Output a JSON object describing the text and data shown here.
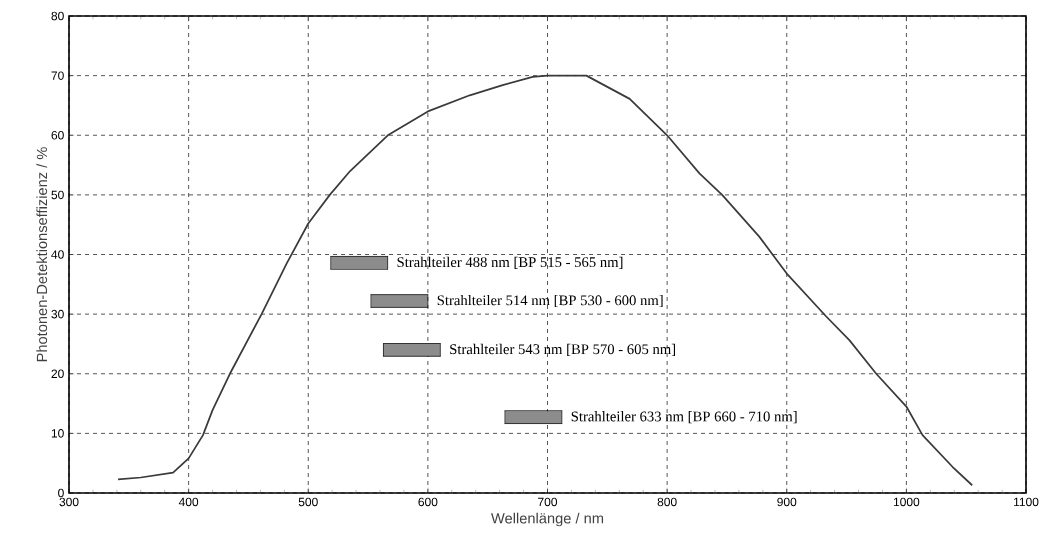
{
  "chart_data": {
    "type": "line",
    "xlabel": "Wellenlänge / nm",
    "ylabel": "Photonen-Detektionseffizienz / %",
    "x": [
      341,
      360,
      387,
      400,
      412,
      420,
      434.5,
      461,
      482,
      500,
      518,
      535,
      566.5,
      600,
      635,
      662.5,
      687.6,
      700,
      732.5,
      768.7,
      800,
      827,
      846,
      877,
      900,
      933,
      952.5,
      974.8,
      1000,
      1013.5,
      1038.5,
      1055
    ],
    "series": [
      {
        "color": "#3a3a3a",
        "values": [
          2.3,
          2.6,
          3.4,
          5.8,
          9.7,
          13.9,
          20,
          30,
          38.5,
          45.2,
          50,
          54,
          60,
          64,
          66.7,
          68.4,
          69.8,
          70,
          70,
          66.1,
          60,
          53.6,
          50,
          43,
          36.8,
          29.6,
          25.6,
          20,
          14.5,
          9.7,
          4.4,
          1.3
        ]
      }
    ],
    "xlim": [
      300,
      1100
    ],
    "ylim": [
      0,
      80
    ],
    "xticks": [
      300,
      400,
      500,
      600,
      700,
      800,
      900,
      1000,
      1100
    ],
    "yticks": [
      0,
      10,
      20,
      30,
      40,
      50,
      60,
      70,
      80
    ],
    "grid": true,
    "annotations": [
      "Strahlteiler 488 nm [BP 515 - 565 nm]",
      "Strahlteiler 514 nm [BP 530 - 600 nm]",
      "Strahlteiler 543 nm [BP 570 - 605 nm]",
      "Strahlteiler 633 nm [BP 660 - 710 nm]"
    ]
  }
}
